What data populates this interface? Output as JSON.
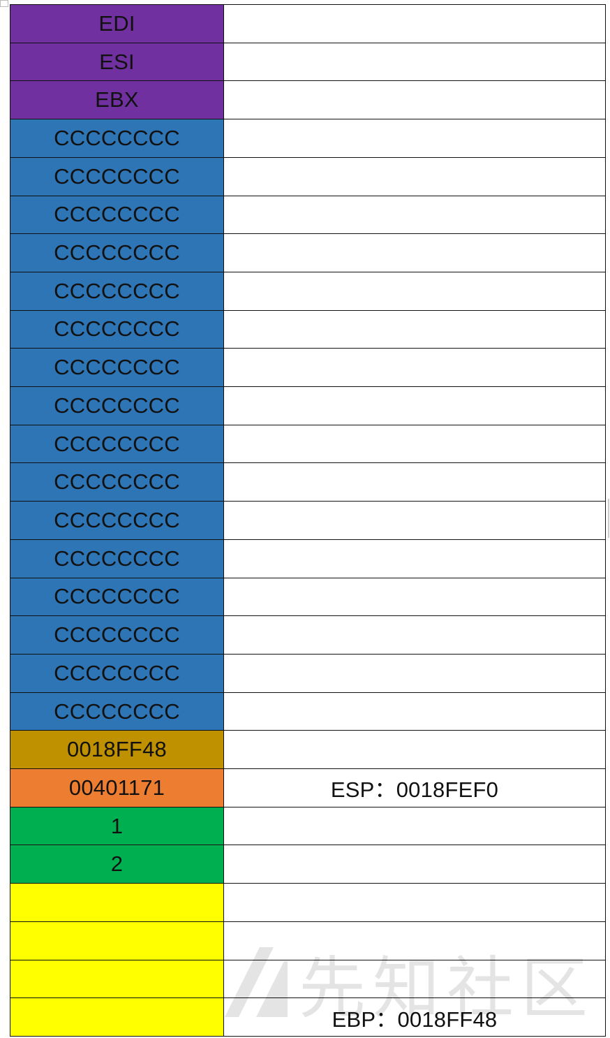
{
  "stack_rows": [
    {
      "value": "EDI",
      "note": "",
      "color": "#7030a0"
    },
    {
      "value": "ESI",
      "note": "",
      "color": "#7030a0"
    },
    {
      "value": "EBX",
      "note": "",
      "color": "#7030a0"
    },
    {
      "value": "CCCCCCCC",
      "note": "",
      "color": "#2e75b6"
    },
    {
      "value": "CCCCCCCC",
      "note": "",
      "color": "#2e75b6"
    },
    {
      "value": "CCCCCCCC",
      "note": "",
      "color": "#2e75b6"
    },
    {
      "value": "CCCCCCCC",
      "note": "",
      "color": "#2e75b6"
    },
    {
      "value": "CCCCCCCC",
      "note": "",
      "color": "#2e75b6"
    },
    {
      "value": "CCCCCCCC",
      "note": "",
      "color": "#2e75b6"
    },
    {
      "value": "CCCCCCCC",
      "note": "",
      "color": "#2e75b6"
    },
    {
      "value": "CCCCCCCC",
      "note": "",
      "color": "#2e75b6"
    },
    {
      "value": "CCCCCCCC",
      "note": "",
      "color": "#2e75b6"
    },
    {
      "value": "CCCCCCCC",
      "note": "",
      "color": "#2e75b6"
    },
    {
      "value": "CCCCCCCC",
      "note": "",
      "color": "#2e75b6"
    },
    {
      "value": "CCCCCCCC",
      "note": "",
      "color": "#2e75b6"
    },
    {
      "value": "CCCCCCCC",
      "note": "",
      "color": "#2e75b6"
    },
    {
      "value": "CCCCCCCC",
      "note": "",
      "color": "#2e75b6"
    },
    {
      "value": "CCCCCCCC",
      "note": "",
      "color": "#2e75b6"
    },
    {
      "value": "CCCCCCCC",
      "note": "",
      "color": "#2e75b6"
    },
    {
      "value": "0018FF48",
      "note": "",
      "color": "#bf9000"
    },
    {
      "value": "00401171",
      "note": "ESP：0018FEF0",
      "color": "#ed7d31"
    },
    {
      "value": "1",
      "note": "",
      "color": "#00b050"
    },
    {
      "value": "2",
      "note": "",
      "color": "#00b050"
    },
    {
      "value": "",
      "note": "",
      "color": "#ffff00"
    },
    {
      "value": "",
      "note": "",
      "color": "#ffff00"
    },
    {
      "value": "",
      "note": "",
      "color": "#ffff00"
    },
    {
      "value": "",
      "note": "EBP：0018FF48",
      "color": "#ffff00"
    }
  ],
  "watermark": {
    "text": "先知社区",
    "icon": "xianzhi-logo-icon"
  }
}
